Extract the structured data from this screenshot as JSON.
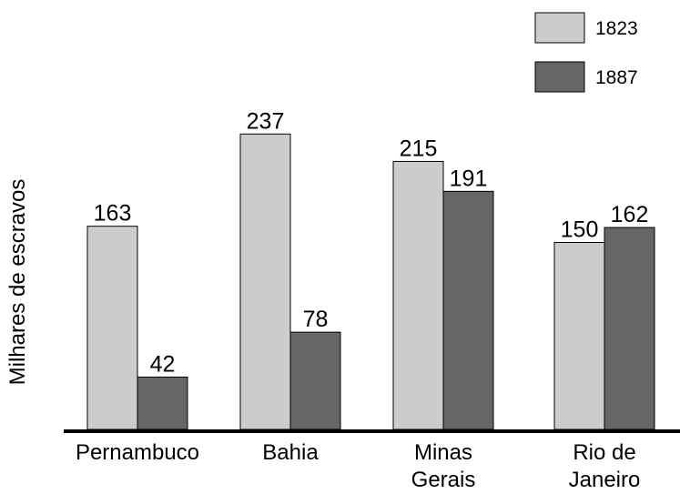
{
  "chart_data": {
    "type": "bar",
    "ylabel": "Milhares de escravos",
    "categories": [
      [
        "Pernambuco"
      ],
      [
        "Bahia"
      ],
      [
        "Minas",
        "Gerais"
      ],
      [
        "Rio de",
        "Janeiro"
      ]
    ],
    "series": [
      {
        "name": "1823",
        "color": "#cccccc",
        "values": [
          163,
          237,
          215,
          150
        ]
      },
      {
        "name": "1887",
        "color": "#666666",
        "values": [
          42,
          78,
          191,
          162
        ]
      }
    ],
    "legend_position": "top-right",
    "grid": false
  }
}
